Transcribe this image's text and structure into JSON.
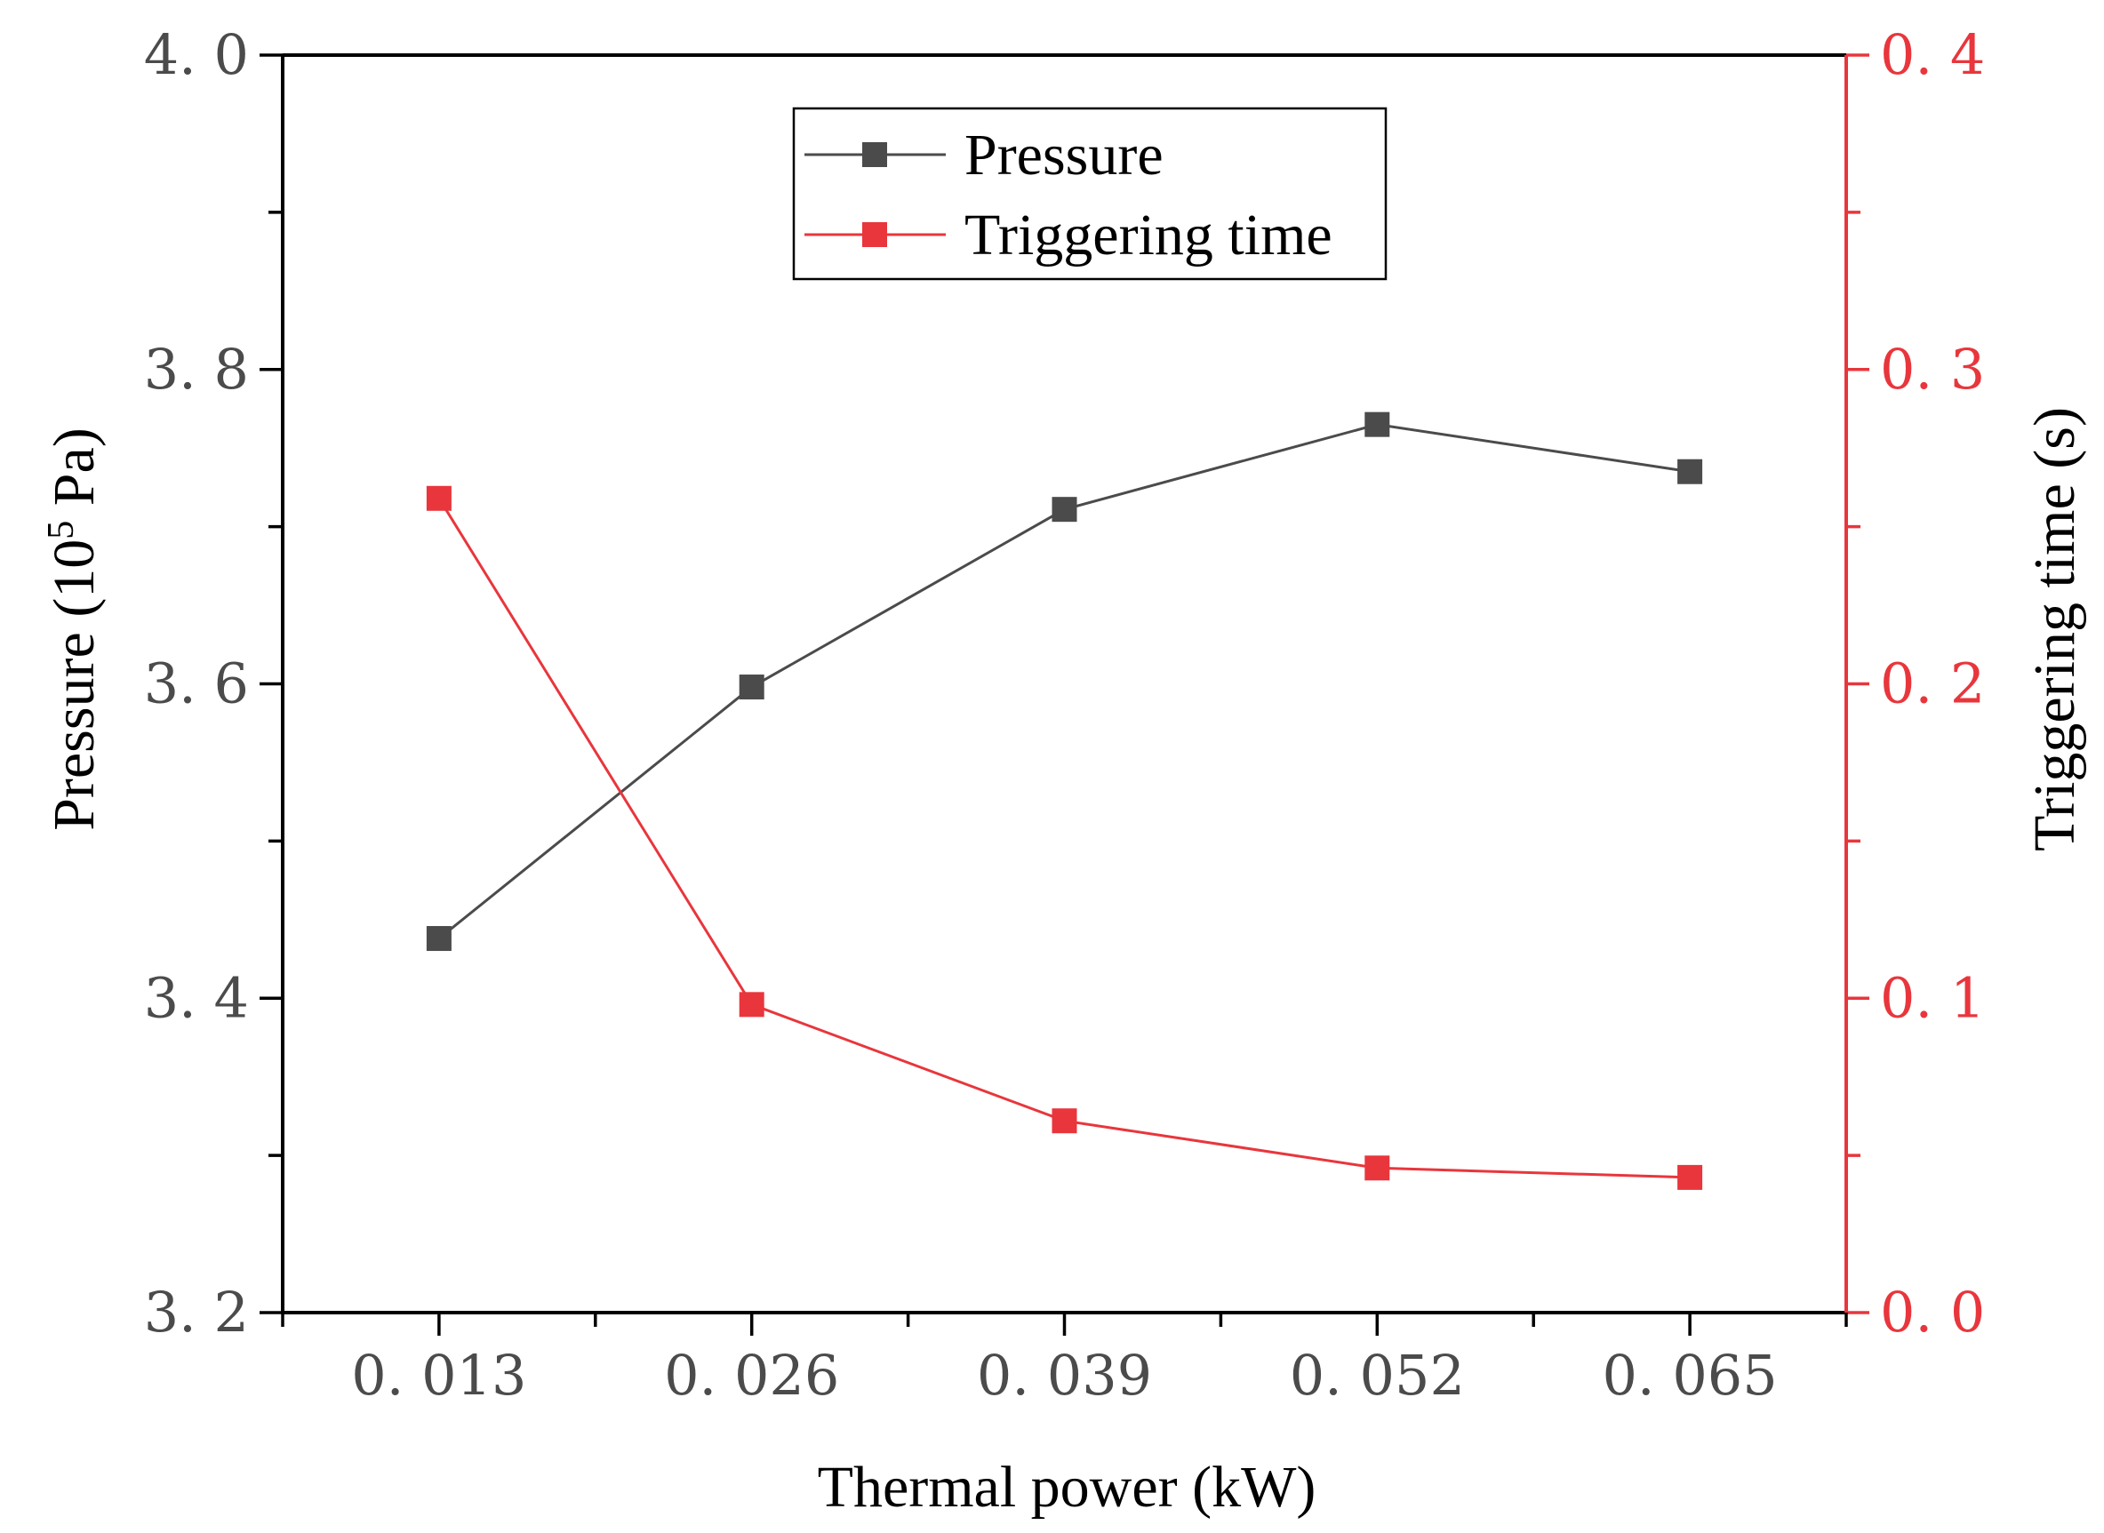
{
  "chart_data": {
    "type": "line",
    "categories": [
      "0. 013",
      "0. 026",
      "0. 039",
      "0. 052",
      "0. 065"
    ],
    "x": [
      0.013,
      0.026,
      0.039,
      0.052,
      0.065
    ],
    "xlabel": "Thermal power (kW)",
    "ylabel_left": {
      "prefix": "Pressure (10",
      "sup": "5",
      "suffix": " Pa)"
    },
    "ylabel_right": "Triggering time (s)",
    "ylim_left": [
      3.2,
      4.0
    ],
    "ylim_right": [
      0.0,
      0.4
    ],
    "yticks_left": [
      "3. 2",
      "3. 4",
      "3. 6",
      "3. 8",
      "4. 0"
    ],
    "yticks_right": [
      "0. 0",
      "0. 1",
      "0. 2",
      "0. 3",
      "0. 4"
    ],
    "grid": false,
    "legend_position": "top-center",
    "series": [
      {
        "name": "Pressure",
        "axis": "left",
        "color": "#4b4b4b",
        "marker": "square",
        "values": [
          3.438,
          3.598,
          3.711,
          3.765,
          3.735
        ]
      },
      {
        "name": "Triggering time",
        "axis": "right",
        "color": "#e8363c",
        "marker": "square",
        "values": [
          0.259,
          0.098,
          0.061,
          0.046,
          0.043
        ]
      }
    ]
  }
}
